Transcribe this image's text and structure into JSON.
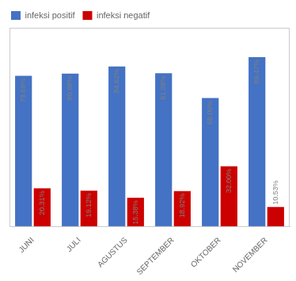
{
  "chart_data": {
    "type": "bar",
    "categories": [
      "JUNI",
      "JULI",
      "AGUSTUS",
      "SEPTEMBER",
      "OKTOBER",
      "NOVEMBER"
    ],
    "series": [
      {
        "name": "infeksi positif",
        "color": "#4472C4",
        "values": [
          79.69,
          80.88,
          84.62,
          81.08,
          68.0,
          89.47
        ],
        "value_labels": [
          "79.69%",
          "80.88%",
          "84.62%",
          "81.08%",
          "68.00%",
          "89.47%"
        ]
      },
      {
        "name": "infeksi negatif",
        "color": "#CC0000",
        "values": [
          20.31,
          19.12,
          15.38,
          18.92,
          32.0,
          10.53
        ],
        "value_labels": [
          "20.31%",
          "19.12%",
          "15.38%",
          "18.92%",
          "32.00%",
          "10.53%"
        ]
      }
    ],
    "ylim": [
      0,
      105
    ],
    "tick_labels": "x",
    "grid": false,
    "legend": "upper left",
    "data_labels": true
  }
}
